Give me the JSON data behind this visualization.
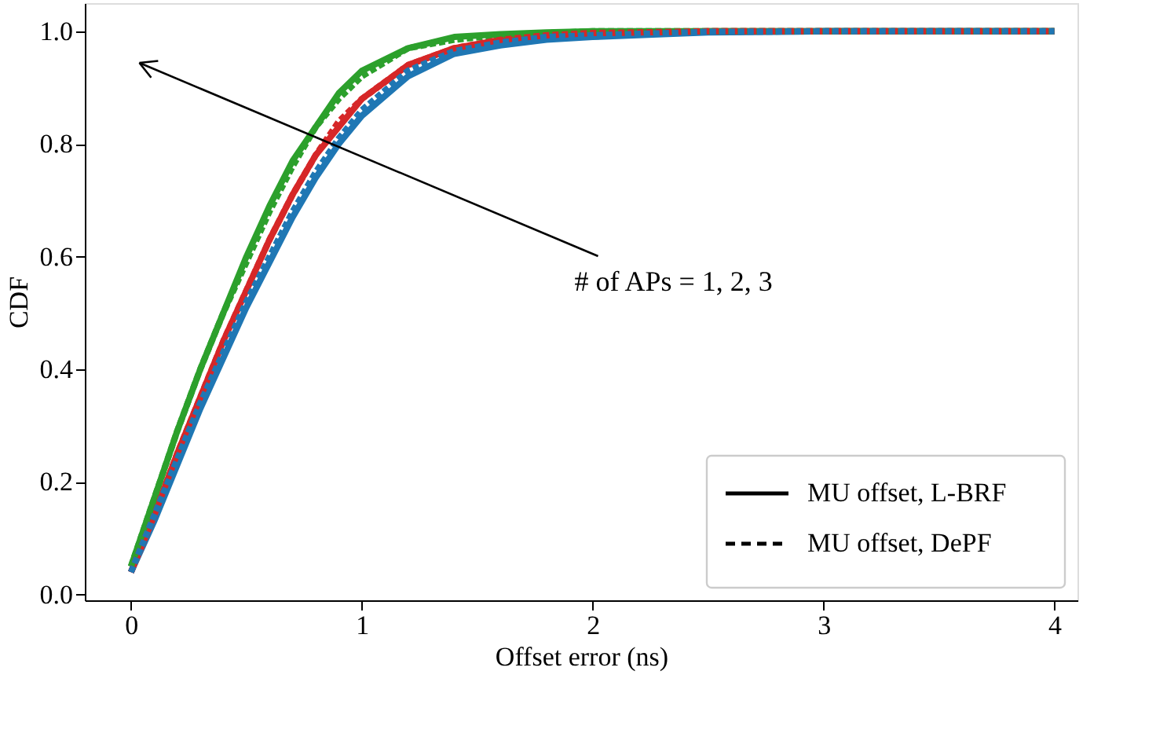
{
  "chart_data": {
    "type": "line",
    "xlabel": "Offset error (ns)",
    "ylabel": "CDF",
    "xlim": [
      -0.2,
      4.1
    ],
    "ylim": [
      -0.01,
      1.05
    ],
    "xticks": [
      0,
      1,
      2,
      3,
      4
    ],
    "yticks": [
      {
        "value": 0,
        "label": "0.0"
      },
      {
        "value": 0.2,
        "label": "0.2"
      },
      {
        "value": 0.4,
        "label": "0.4"
      },
      {
        "value": 0.6,
        "label": "0.6"
      },
      {
        "value": 0.8,
        "label": "0.8"
      },
      {
        "value": 1,
        "label": "1.0"
      }
    ],
    "x": [
      0,
      0.1,
      0.2,
      0.3,
      0.4,
      0.5,
      0.6,
      0.7,
      0.8,
      0.9,
      1.0,
      1.2,
      1.4,
      1.6,
      1.8,
      2.0,
      2.5,
      3.0,
      4.0
    ],
    "series": [
      {
        "color": "#1f77b4",
        "line_style": "solid",
        "values": [
          0.04,
          0.13,
          0.23,
          0.33,
          0.42,
          0.51,
          0.59,
          0.67,
          0.74,
          0.8,
          0.85,
          0.92,
          0.96,
          0.975,
          0.985,
          0.99,
          0.998,
          1.0,
          1.0
        ]
      },
      {
        "color": "#d62728",
        "line_style": "solid",
        "values": [
          0.04,
          0.14,
          0.25,
          0.35,
          0.45,
          0.54,
          0.63,
          0.71,
          0.78,
          0.83,
          0.88,
          0.94,
          0.97,
          0.985,
          0.993,
          0.997,
          1.0,
          1.0,
          1.0
        ]
      },
      {
        "color": "#2ca02c",
        "line_style": "solid",
        "values": [
          0.05,
          0.17,
          0.29,
          0.4,
          0.5,
          0.6,
          0.69,
          0.77,
          0.83,
          0.89,
          0.93,
          0.97,
          0.99,
          0.995,
          0.998,
          1.0,
          1.0,
          1.0,
          1.0
        ]
      },
      {
        "color": "#1f77b4",
        "line_style": "dashed",
        "values": [
          0.04,
          0.14,
          0.24,
          0.34,
          0.43,
          0.52,
          0.6,
          0.68,
          0.75,
          0.81,
          0.86,
          0.93,
          0.965,
          0.98,
          0.99,
          0.993,
          0.999,
          1.0,
          1.0
        ]
      },
      {
        "color": "#d62728",
        "line_style": "dashed",
        "values": [
          0.04,
          0.14,
          0.25,
          0.35,
          0.45,
          0.54,
          0.63,
          0.71,
          0.78,
          0.84,
          0.88,
          0.94,
          0.97,
          0.985,
          0.993,
          0.997,
          1.0,
          1.0,
          1.0
        ]
      },
      {
        "color": "#2ca02c",
        "line_style": "dashed",
        "values": [
          0.05,
          0.17,
          0.29,
          0.4,
          0.5,
          0.59,
          0.68,
          0.76,
          0.83,
          0.88,
          0.92,
          0.97,
          0.985,
          0.993,
          0.997,
          1.0,
          1.0,
          1.0,
          1.0
        ]
      }
    ],
    "annotations": [
      "# of APs = 1, 2, 3",
      "MU offset, L-BRF",
      "MU offset, DePF"
    ],
    "grid": false
  }
}
